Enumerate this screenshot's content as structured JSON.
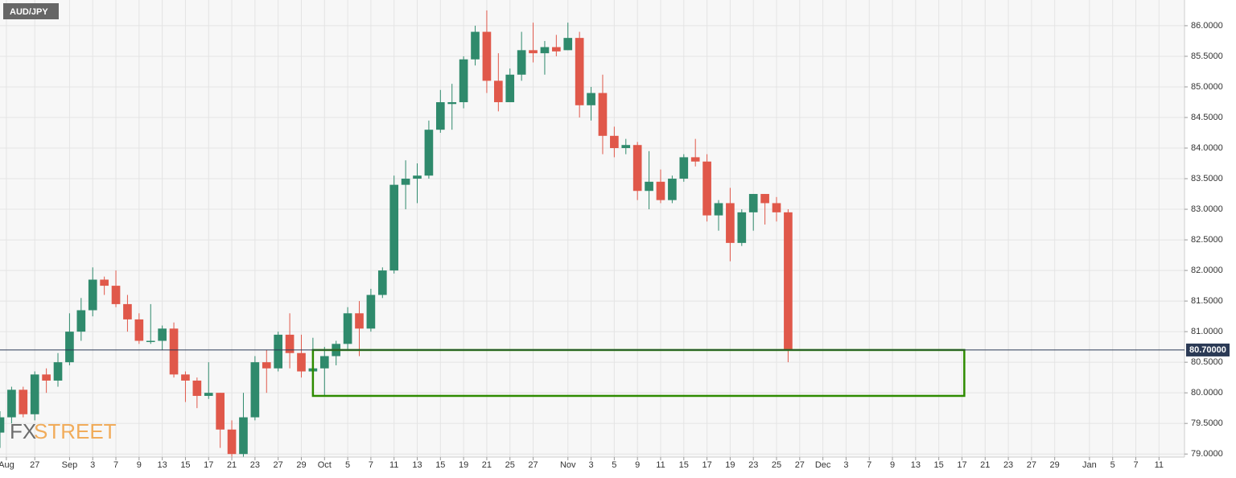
{
  "chart_data": {
    "type": "candlestick",
    "title": "AUD/JPY",
    "up_color": "#2f8a6c",
    "down_color": "#e0584a",
    "grid": true,
    "open": [
      79.35,
      79.6,
      80.05,
      79.65,
      80.3,
      80.2,
      80.5,
      81.0,
      81.35,
      81.85,
      81.75,
      81.45,
      81.2,
      80.85,
      80.85,
      81.05,
      80.3,
      80.2,
      79.95,
      80.0,
      79.4,
      79.0,
      79.6,
      80.5,
      80.4,
      80.95,
      80.65,
      80.35,
      80.4,
      80.6,
      80.8,
      81.3,
      81.05,
      81.6,
      82.0,
      83.4,
      83.5,
      83.55,
      84.3,
      84.72,
      84.75,
      85.45,
      85.9,
      85.1,
      84.75,
      85.2,
      85.6,
      85.55,
      85.65,
      85.6,
      85.8,
      84.7,
      84.9,
      84.2,
      84.0,
      84.05,
      83.3,
      83.45,
      83.15,
      83.5,
      83.85,
      83.78,
      82.9,
      83.1,
      82.45,
      82.95,
      83.25,
      83.1,
      82.95
    ],
    "high": [
      79.7,
      80.1,
      80.1,
      80.35,
      80.4,
      80.65,
      81.3,
      81.55,
      82.05,
      81.9,
      82.0,
      81.6,
      81.3,
      81.45,
      81.1,
      81.15,
      80.35,
      80.25,
      80.5,
      80.0,
      79.55,
      80.0,
      80.6,
      80.7,
      81.0,
      81.3,
      80.95,
      80.9,
      80.75,
      80.85,
      81.4,
      81.5,
      81.7,
      82.05,
      83.55,
      83.8,
      83.75,
      84.45,
      84.95,
      85.05,
      85.5,
      86.0,
      86.25,
      85.55,
      85.3,
      85.9,
      86.05,
      85.75,
      85.85,
      86.05,
      85.9,
      85.0,
      85.2,
      84.35,
      84.15,
      84.1,
      83.95,
      83.65,
      83.55,
      83.9,
      84.15,
      83.9,
      83.15,
      83.35,
      83.0,
      83.25,
      83.25,
      83.2,
      83.0
    ],
    "low": [
      79.1,
      79.5,
      79.6,
      79.55,
      80.0,
      80.1,
      80.45,
      80.85,
      81.25,
      81.6,
      81.4,
      81.0,
      80.8,
      80.8,
      80.7,
      80.25,
      79.85,
      79.75,
      79.9,
      79.1,
      78.95,
      78.95,
      79.55,
      80.0,
      80.35,
      80.4,
      80.25,
      80.1,
      79.95,
      80.45,
      80.7,
      80.6,
      81.0,
      81.55,
      81.95,
      83.0,
      83.1,
      83.5,
      84.25,
      84.3,
      84.65,
      85.35,
      84.9,
      84.6,
      84.75,
      85.1,
      85.4,
      85.2,
      85.5,
      85.6,
      84.5,
      84.45,
      83.9,
      83.85,
      83.9,
      83.15,
      83.0,
      83.1,
      83.1,
      83.45,
      83.7,
      82.8,
      82.65,
      82.15,
      82.4,
      82.65,
      82.75,
      82.8,
      80.5
    ],
    "close": [
      79.6,
      80.05,
      79.65,
      80.3,
      80.2,
      80.5,
      81.0,
      81.35,
      81.85,
      81.75,
      81.45,
      81.2,
      80.85,
      80.85,
      81.05,
      80.3,
      80.2,
      79.95,
      80.0,
      79.4,
      79.0,
      79.6,
      80.5,
      80.4,
      80.95,
      80.65,
      80.35,
      80.4,
      80.6,
      80.8,
      81.3,
      81.05,
      81.6,
      82.0,
      83.4,
      83.5,
      83.55,
      84.3,
      84.75,
      84.75,
      85.45,
      85.9,
      85.1,
      84.75,
      85.2,
      85.6,
      85.55,
      85.65,
      85.58,
      85.8,
      84.7,
      84.9,
      84.2,
      84.0,
      84.05,
      83.3,
      83.45,
      83.15,
      83.5,
      83.85,
      83.78,
      82.9,
      83.1,
      82.45,
      82.95,
      83.25,
      83.1,
      82.95,
      80.7
    ],
    "ylim": [
      78.95,
      86.42
    ],
    "yticks": [
      {
        "value": 79.0,
        "label": "79.0000"
      },
      {
        "value": 79.5,
        "label": "79.5000"
      },
      {
        "value": 80.0,
        "label": "80.0000"
      },
      {
        "value": 80.5,
        "label": "80.5000"
      },
      {
        "value": 81.0,
        "label": "81.0000"
      },
      {
        "value": 81.5,
        "label": "81.5000"
      },
      {
        "value": 82.0,
        "label": "82.0000"
      },
      {
        "value": 82.5,
        "label": "82.5000"
      },
      {
        "value": 83.0,
        "label": "83.0000"
      },
      {
        "value": 83.5,
        "label": "83.5000"
      },
      {
        "value": 84.0,
        "label": "84.0000"
      },
      {
        "value": 84.5,
        "label": "84.5000"
      },
      {
        "value": 85.0,
        "label": "85.0000"
      },
      {
        "value": 85.5,
        "label": "85.5000"
      },
      {
        "value": 86.0,
        "label": "86.0000"
      }
    ],
    "xlim": [
      0,
      102.2
    ],
    "xticks": [
      {
        "value": 0.55,
        "label": "Aug"
      },
      {
        "value": 3,
        "label": "27"
      },
      {
        "value": 6,
        "label": "Sep"
      },
      {
        "value": 8,
        "label": "3"
      },
      {
        "value": 10,
        "label": "7"
      },
      {
        "value": 12,
        "label": "9"
      },
      {
        "value": 14,
        "label": "13"
      },
      {
        "value": 16,
        "label": "15"
      },
      {
        "value": 18,
        "label": "17"
      },
      {
        "value": 20,
        "label": "21"
      },
      {
        "value": 22,
        "label": "23"
      },
      {
        "value": 24,
        "label": "27"
      },
      {
        "value": 26,
        "label": "29"
      },
      {
        "value": 28,
        "label": "Oct"
      },
      {
        "value": 30,
        "label": "5"
      },
      {
        "value": 32,
        "label": "7"
      },
      {
        "value": 34,
        "label": "11"
      },
      {
        "value": 36,
        "label": "13"
      },
      {
        "value": 38,
        "label": "15"
      },
      {
        "value": 40,
        "label": "19"
      },
      {
        "value": 42,
        "label": "21"
      },
      {
        "value": 44,
        "label": "25"
      },
      {
        "value": 46,
        "label": "27"
      },
      {
        "value": 49,
        "label": "Nov"
      },
      {
        "value": 51,
        "label": "3"
      },
      {
        "value": 53,
        "label": "5"
      },
      {
        "value": 55,
        "label": "9"
      },
      {
        "value": 57,
        "label": "11"
      },
      {
        "value": 59,
        "label": "15"
      },
      {
        "value": 61,
        "label": "17"
      },
      {
        "value": 63,
        "label": "19"
      },
      {
        "value": 65,
        "label": "23"
      },
      {
        "value": 67,
        "label": "25"
      },
      {
        "value": 69,
        "label": "27"
      },
      {
        "value": 71,
        "label": "Dec"
      },
      {
        "value": 73,
        "label": "3"
      },
      {
        "value": 75,
        "label": "7"
      },
      {
        "value": 77,
        "label": "9"
      },
      {
        "value": 79,
        "label": "13"
      },
      {
        "value": 81,
        "label": "15"
      },
      {
        "value": 83,
        "label": "17"
      },
      {
        "value": 85,
        "label": "21"
      },
      {
        "value": 87,
        "label": "23"
      },
      {
        "value": 89,
        "label": "27"
      },
      {
        "value": 91,
        "label": "29"
      },
      {
        "value": 94,
        "label": "Jan"
      },
      {
        "value": 96,
        "label": "5"
      },
      {
        "value": 98,
        "label": "7"
      },
      {
        "value": 100,
        "label": "11"
      }
    ],
    "current_price": {
      "value": 80.7,
      "label": "80.70000",
      "color": "#2b3a55"
    },
    "zone": {
      "x": [
        27,
        83.2
      ],
      "y": [
        79.95,
        80.7
      ],
      "color": "#2e8b00"
    }
  },
  "logo": [
    "FX",
    "STREET"
  ]
}
